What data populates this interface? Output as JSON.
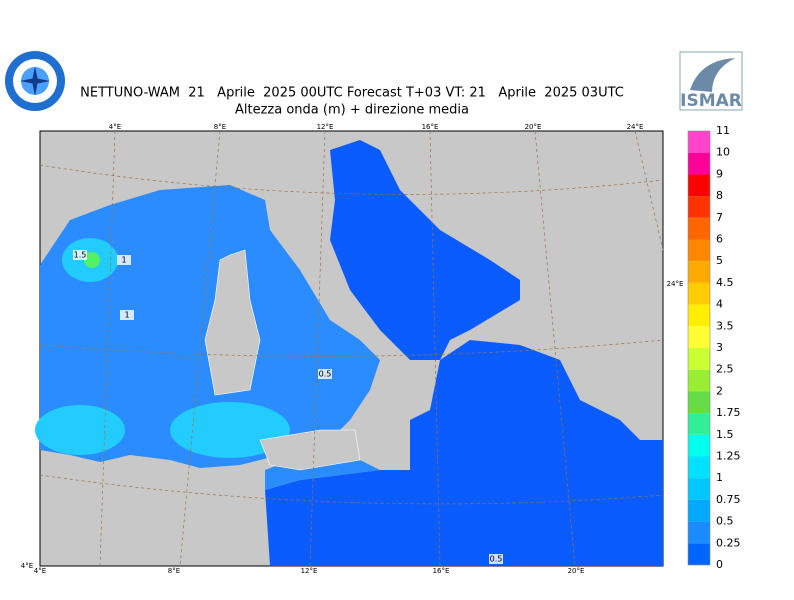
{
  "header": {
    "title": "NETTUNO-WAM  21   Aprile  2025 00UTC Forecast T+03 VT: 21   Aprile  2025 03UTC",
    "subtitle": "Altezza onda (m) + direzione media",
    "logo_text": "ISMAR"
  },
  "map": {
    "top_labels": [
      "4°E",
      "8°E",
      "12°E",
      "16°E",
      "20°E",
      "24°E"
    ],
    "bottom_labels": [
      "4°E",
      "4°E",
      "8°E",
      "12°E",
      "16°E",
      "20°E"
    ],
    "right_label": "24°E",
    "contour_labels": [
      "1.5",
      "1",
      "1",
      "0.5",
      "0.5"
    ]
  },
  "colorbar": {
    "labels": [
      11,
      10,
      9,
      8,
      7,
      6,
      5,
      4.5,
      4,
      3.5,
      3,
      2.5,
      2,
      1.75,
      1.5,
      1.25,
      1,
      0.75,
      0.5,
      0.25,
      0
    ],
    "colors": [
      "#ff44cc",
      "#ff0099",
      "#ff0000",
      "#ff3300",
      "#ff6600",
      "#ff8800",
      "#ffaa00",
      "#ffcc00",
      "#ffee00",
      "#ffff33",
      "#ccff33",
      "#99ee33",
      "#66dd44",
      "#33ee99",
      "#00ffee",
      "#00e0ff",
      "#00c8ff",
      "#00aaff",
      "#1a8cff",
      "#0066ff"
    ]
  }
}
